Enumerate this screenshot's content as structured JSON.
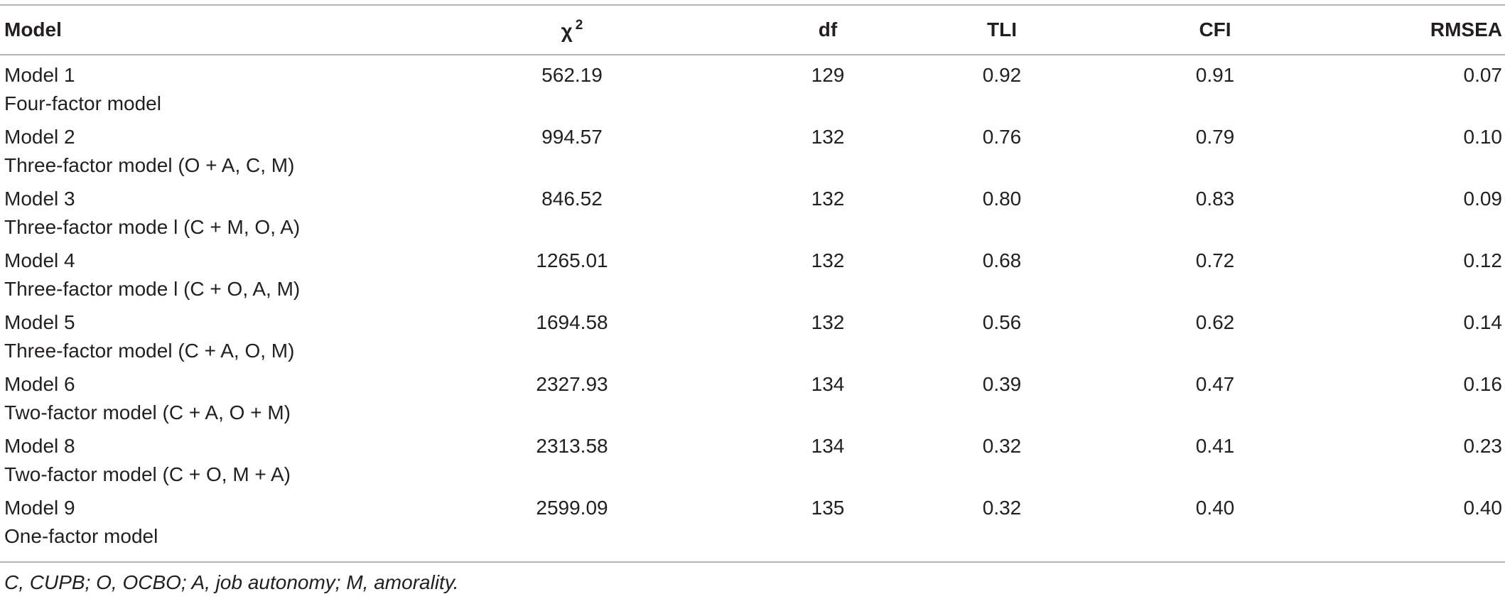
{
  "table": {
    "headers": {
      "model": "Model",
      "chi_symbol": "χ",
      "chi_sup": "2",
      "df": "df",
      "tli": "TLI",
      "cfi": "CFI",
      "rmsea": "RMSEA"
    },
    "rows": [
      {
        "model": "Model 1",
        "desc": "Four-factor model",
        "chi2": "562.19",
        "df": "129",
        "tli": "0.92",
        "cfi": "0.91",
        "rmsea": "0.07"
      },
      {
        "model": "Model 2",
        "desc": "Three-factor model (O + A, C, M)",
        "chi2": "994.57",
        "df": "132",
        "tli": "0.76",
        "cfi": "0.79",
        "rmsea": "0.10"
      },
      {
        "model": "Model 3",
        "desc": "Three-factor mode l (C + M, O, A)",
        "chi2": "846.52",
        "df": "132",
        "tli": "0.80",
        "cfi": "0.83",
        "rmsea": "0.09"
      },
      {
        "model": "Model 4",
        "desc": "Three-factor mode l (C + O, A, M)",
        "chi2": "1265.01",
        "df": "132",
        "tli": "0.68",
        "cfi": "0.72",
        "rmsea": "0.12"
      },
      {
        "model": "Model 5",
        "desc": "Three-factor model (C + A, O, M)",
        "chi2": "1694.58",
        "df": "132",
        "tli": "0.56",
        "cfi": "0.62",
        "rmsea": "0.14"
      },
      {
        "model": "Model 6",
        "desc": "Two-factor model (C + A, O + M)",
        "chi2": "2327.93",
        "df": "134",
        "tli": "0.39",
        "cfi": "0.47",
        "rmsea": "0.16"
      },
      {
        "model": "Model 8",
        "desc": "Two-factor model (C + O, M + A)",
        "chi2": "2313.58",
        "df": "134",
        "tli": "0.32",
        "cfi": "0.41",
        "rmsea": "0.23"
      },
      {
        "model": "Model 9",
        "desc": "One-factor model",
        "chi2": "2599.09",
        "df": "135",
        "tli": "0.32",
        "cfi": "0.40",
        "rmsea": "0.40"
      }
    ]
  },
  "footnote": "C, CUPB; O, OCBO; A, job autonomy; M, amorality."
}
